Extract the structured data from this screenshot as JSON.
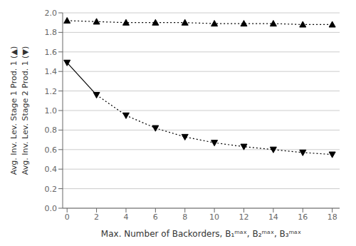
{
  "chart_data": {
    "type": "line",
    "xlabel": "Max. Number of Backorders, B₁ᵐᵃˣ, B₂ᵐᵃˣ, B₃ᵐᵃˣ",
    "ylabel": [
      "Avg. Inv. Lev. Stage 1 Prod. 1 (▲)",
      "Avg. Inv. Lev. Stage 2 Prod. 1 (▼)"
    ],
    "x": [
      0,
      2,
      4,
      6,
      8,
      10,
      12,
      14,
      16,
      18
    ],
    "series": [
      {
        "color": "black",
        "marker": "triangle-up",
        "line_style": "dotted",
        "values": [
          1.92,
          1.91,
          1.9,
          1.9,
          1.9,
          1.89,
          1.89,
          1.89,
          1.88,
          1.88
        ]
      },
      {
        "color": "black",
        "marker": "triangle-down",
        "line_style": "solid-dotted",
        "values": [
          1.49,
          1.16,
          0.95,
          0.82,
          0.73,
          0.67,
          0.63,
          0.6,
          0.57,
          0.55
        ]
      }
    ],
    "xlim": [
      -0.3,
      18.5
    ],
    "ylim": [
      0,
      2
    ],
    "xticks": [
      0,
      2,
      4,
      6,
      8,
      10,
      12,
      14,
      16,
      18
    ],
    "yticks": [
      {
        "value": 0,
        "label": "0.0"
      },
      0.2,
      0.4,
      0.6,
      0.8,
      {
        "value": 1,
        "label": "1.0"
      },
      1.2,
      1.4,
      1.6,
      1.8,
      {
        "value": 2,
        "label": "2.0"
      }
    ],
    "grid": "y"
  }
}
